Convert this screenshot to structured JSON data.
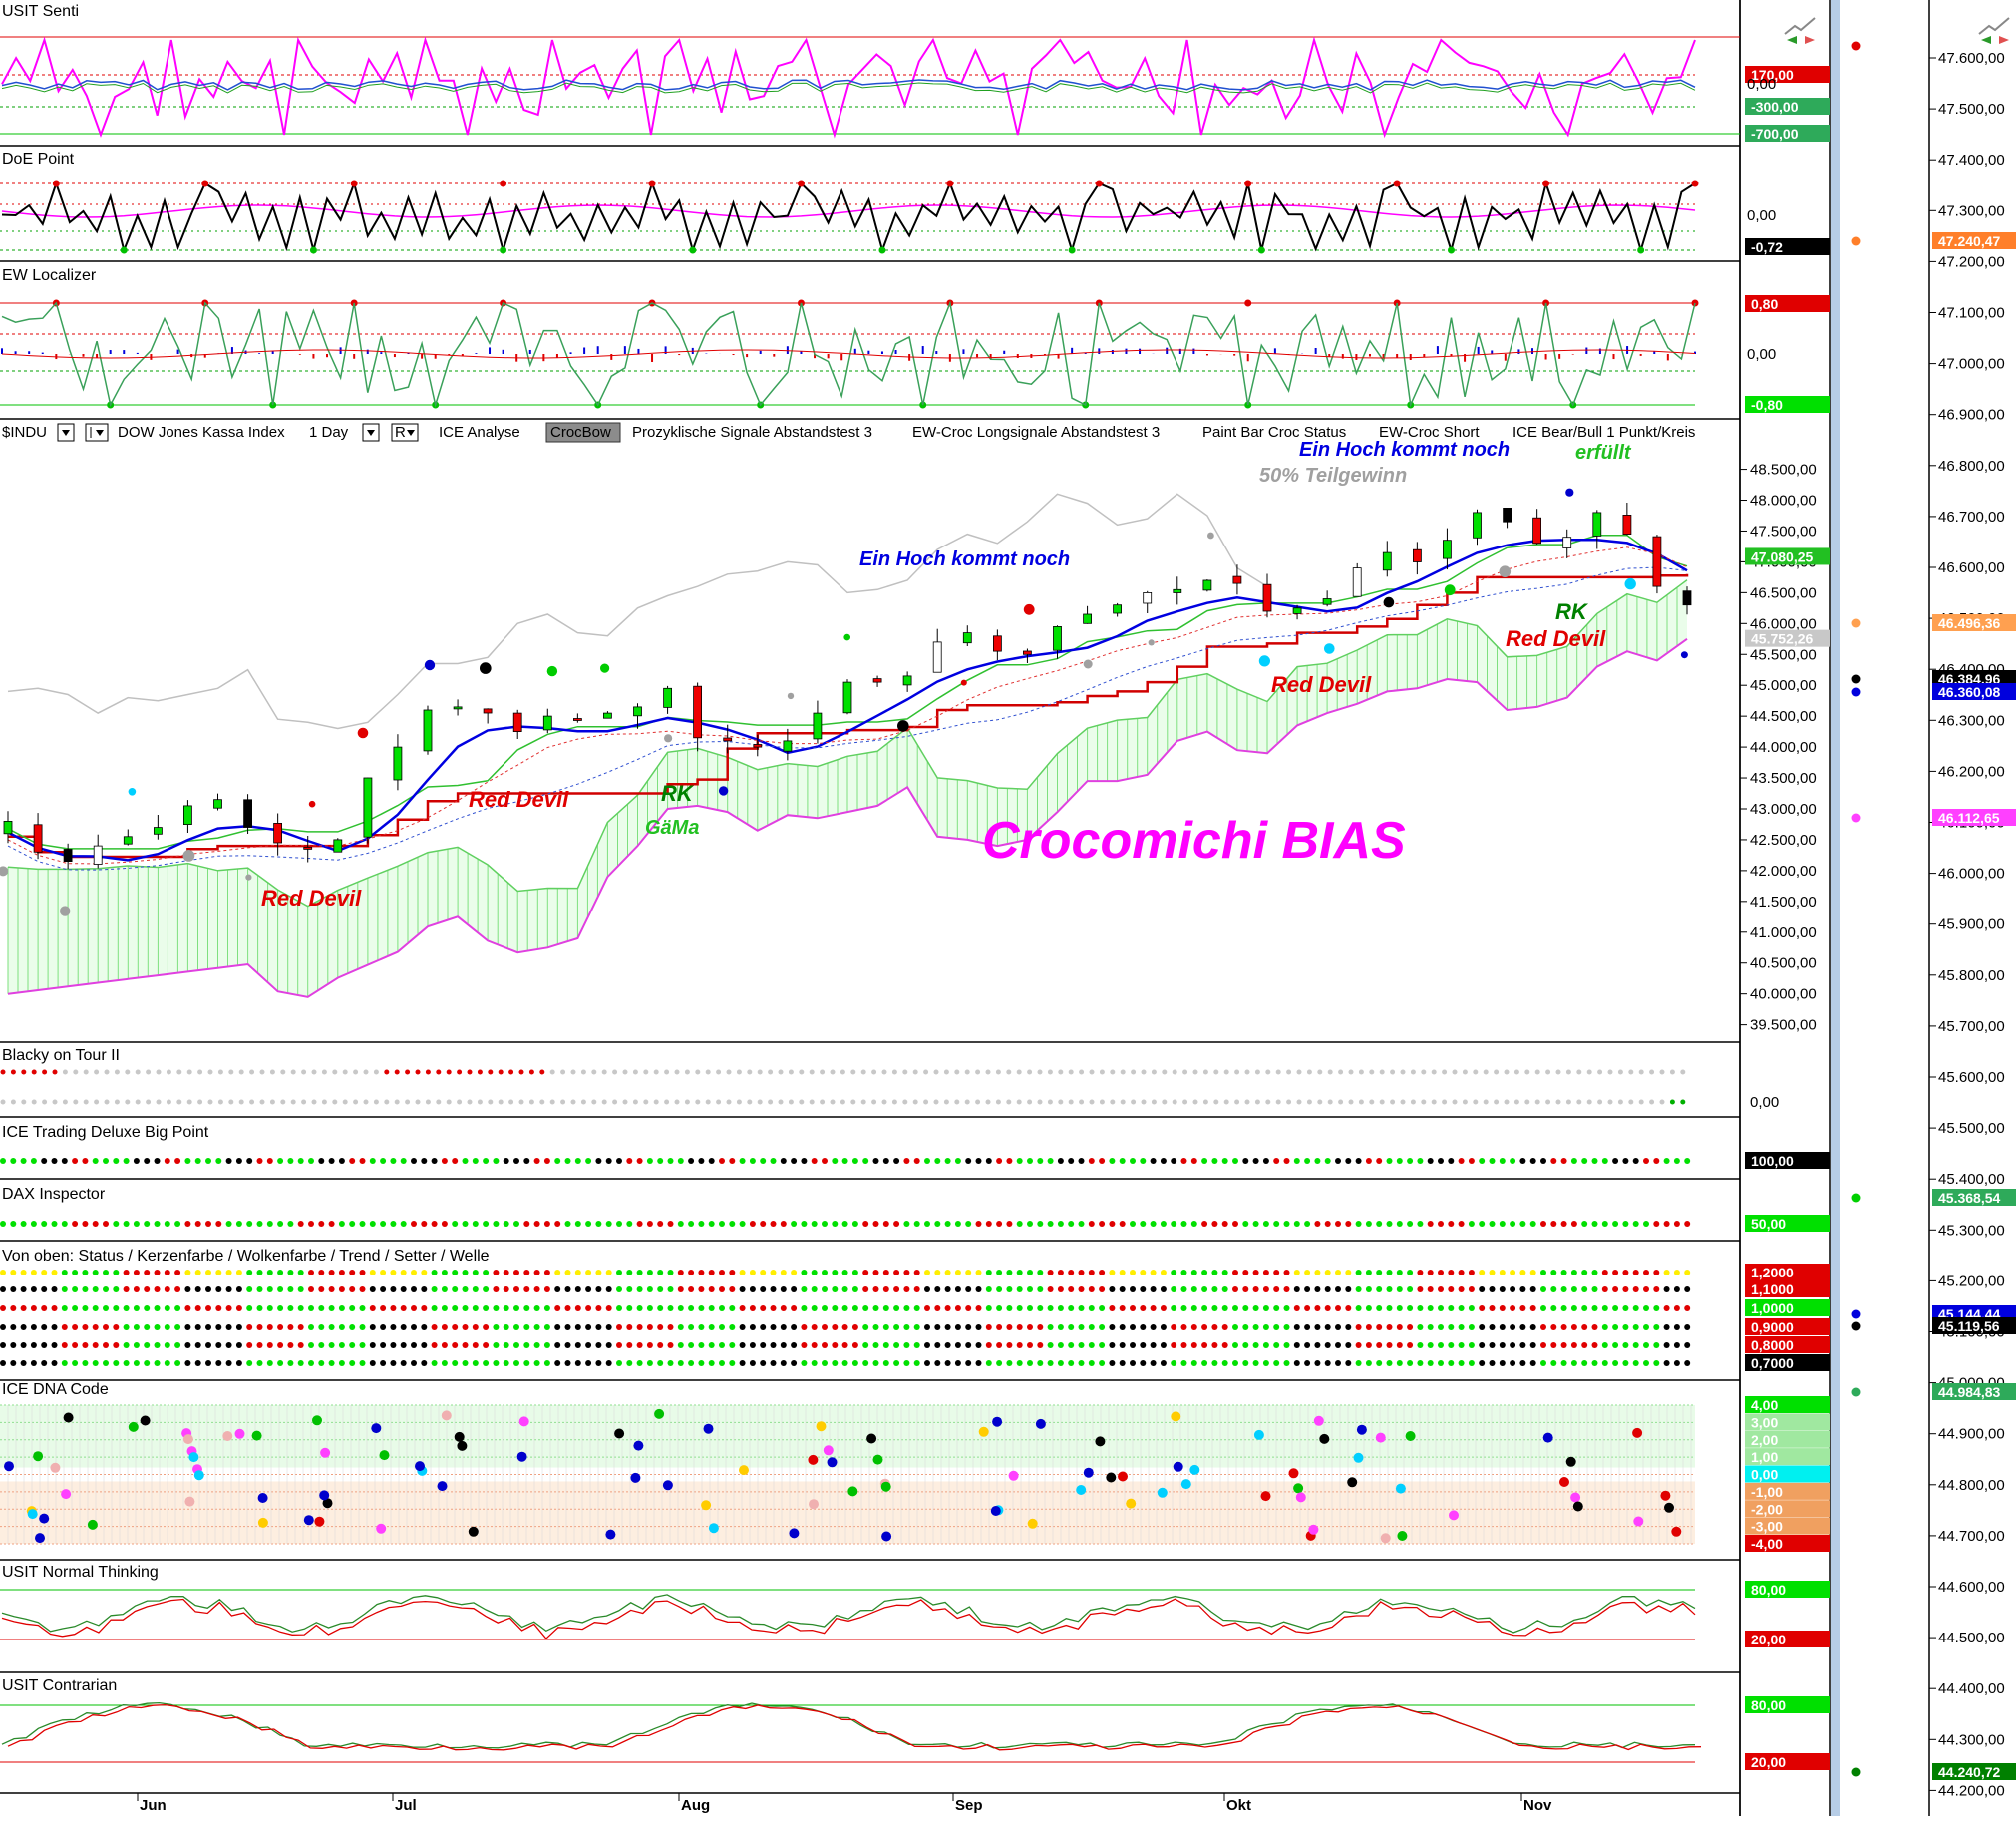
{
  "toolbar": {
    "symbol": "$INDU",
    "instrument": "DOW Jones Kassa Index",
    "interval": "1 Day",
    "r_button": "R",
    "items": [
      "ICE Analyse",
      "CrocBow",
      "Prozyklische Signale Abstandstest 3",
      "EW-Croc Longsignale Abstandstest 3",
      "Paint Bar Croc Status",
      "EW-Croc Short",
      "ICE Bear/Bull 1 Punkt/Kreis"
    ],
    "highlighted_item": "CrocBow"
  },
  "panels": {
    "usit_senti": {
      "title": "USIT Senti",
      "tags": [
        "170,00",
        "0,00",
        "-300,00",
        "-700,00"
      ]
    },
    "doe_point": {
      "title": "DoE Point",
      "tags": [
        "0,00",
        "-0,72"
      ]
    },
    "ew_localizer": {
      "title": "EW Localizer",
      "tags": [
        "0,80",
        "0,00",
        "-0,80"
      ]
    },
    "blacky": {
      "title": "Blacky on Tour II",
      "tags": [
        "0,00"
      ]
    },
    "ice_trading": {
      "title": "ICE Trading Deluxe Big Point",
      "tags": [
        "100,00"
      ]
    },
    "dax_inspector": {
      "title": "DAX Inspector",
      "tags": [
        "50,00"
      ]
    },
    "von_oben": {
      "title": "Von oben: Status / Kerzenfarbe / Wolkenfarbe / Trend / Setter / Welle",
      "tags": [
        "1,2000",
        "1,1000",
        "1,0000",
        "0,9000",
        "0,8000",
        "0,7000"
      ]
    },
    "dna": {
      "title": "ICE DNA Code",
      "tags": [
        "4,00",
        "3,00",
        "2,00",
        "1,00",
        "0,00",
        "-1,00",
        "-2,00",
        "-3,00",
        "-4,00"
      ]
    },
    "normal_thinking": {
      "title": "USIT Normal Thinking",
      "tags": [
        "80,00",
        "20,00"
      ]
    },
    "contrarian": {
      "title": "USIT Contrarian",
      "tags": [
        "80,00",
        "20,00"
      ]
    }
  },
  "annotations": {
    "hoch1": "Ein Hoch kommt noch",
    "hoch2": "Ein Hoch kommt noch",
    "erfuellt": "erfüllt",
    "teilgewinn": "50% Teilgewinn",
    "red_devil_1": "Red Devil",
    "red_devil_2": "Red Devil",
    "red_devil_3": "Red Devil",
    "red_devil_4": "Red Devil",
    "rk_1": "RK",
    "gama": "GäMa",
    "rk_2": "RK",
    "bias": "Crocomichi BIAS"
  },
  "main_price_tags": {
    "last": "47.080,25",
    "second": "45.752,26"
  },
  "right_scale_tags": {
    "a": "47.240,47",
    "b": "46.496,36",
    "c": "46.384,96",
    "d": "46.360,08",
    "e": "46.112,65",
    "f": "45.368,54",
    "g": "45.144,44",
    "h": "45.119,56",
    "i": "44.984,83",
    "j": "44.240,72"
  },
  "chart_data": {
    "type": "candlestick",
    "title": "",
    "xlabel": "",
    "ylabel": "",
    "x_months": [
      "Jun",
      "Jul",
      "Aug",
      "Sep",
      "Okt",
      "Nov"
    ],
    "y_ticks": [
      "48.500,00",
      "48.000,00",
      "47.500,00",
      "47.000,00",
      "46.500,00",
      "46.000,00",
      "45.500,00",
      "45.000,00",
      "44.500,00",
      "44.000,00",
      "43.500,00",
      "43.000,00",
      "42.500,00",
      "42.000,00",
      "41.500,00",
      "41.000,00",
      "40.500,00",
      "40.000,00",
      "39.500,00"
    ],
    "ylim": [
      39300,
      48800
    ],
    "approx_closes": [
      42800,
      42300,
      42150,
      42400,
      42550,
      42700,
      43050,
      43150,
      42700,
      42450,
      42350,
      42500,
      43500,
      44000,
      44600,
      44650,
      44550,
      44250,
      44500,
      44450,
      44550,
      44650,
      44950,
      44150,
      44100,
      44000,
      44100,
      44550,
      45050,
      45050,
      45150,
      45700,
      45850,
      45550,
      45500,
      45950,
      46150,
      46300,
      46500,
      46550,
      46700,
      46650,
      46200,
      46250,
      46400,
      46900,
      47150,
      47000,
      47350,
      47800,
      47650,
      47300,
      47400,
      47800,
      47450,
      46600,
      46300
    ],
    "right_scale_ticks": [
      "47.600,00",
      "47.500,00",
      "47.400,00",
      "47.300,00",
      "47.200,00",
      "47.100,00",
      "47.000,00",
      "46.900,00",
      "46.800,00",
      "46.700,00",
      "46.600,00",
      "46.500,00",
      "46.400,00",
      "46.300,00",
      "46.200,00",
      "46.100,00",
      "46.000,00",
      "45.900,00",
      "45.800,00",
      "45.700,00",
      "45.600,00",
      "45.500,00",
      "45.400,00",
      "45.300,00",
      "45.200,00",
      "45.100,00",
      "45.000,00",
      "44.900,00",
      "44.800,00",
      "44.700,00",
      "44.600,00",
      "44.500,00",
      "44.400,00",
      "44.300,00",
      "44.200,00"
    ],
    "grid": false,
    "legend": "none"
  },
  "colors": {
    "red": "#e00000",
    "green": "#00c000",
    "lime": "#00ff00",
    "magenta": "#ff00ff",
    "blue": "#0000ff",
    "cloud_green": "#9ef59e",
    "scroll_blue": "#b7cde6"
  }
}
